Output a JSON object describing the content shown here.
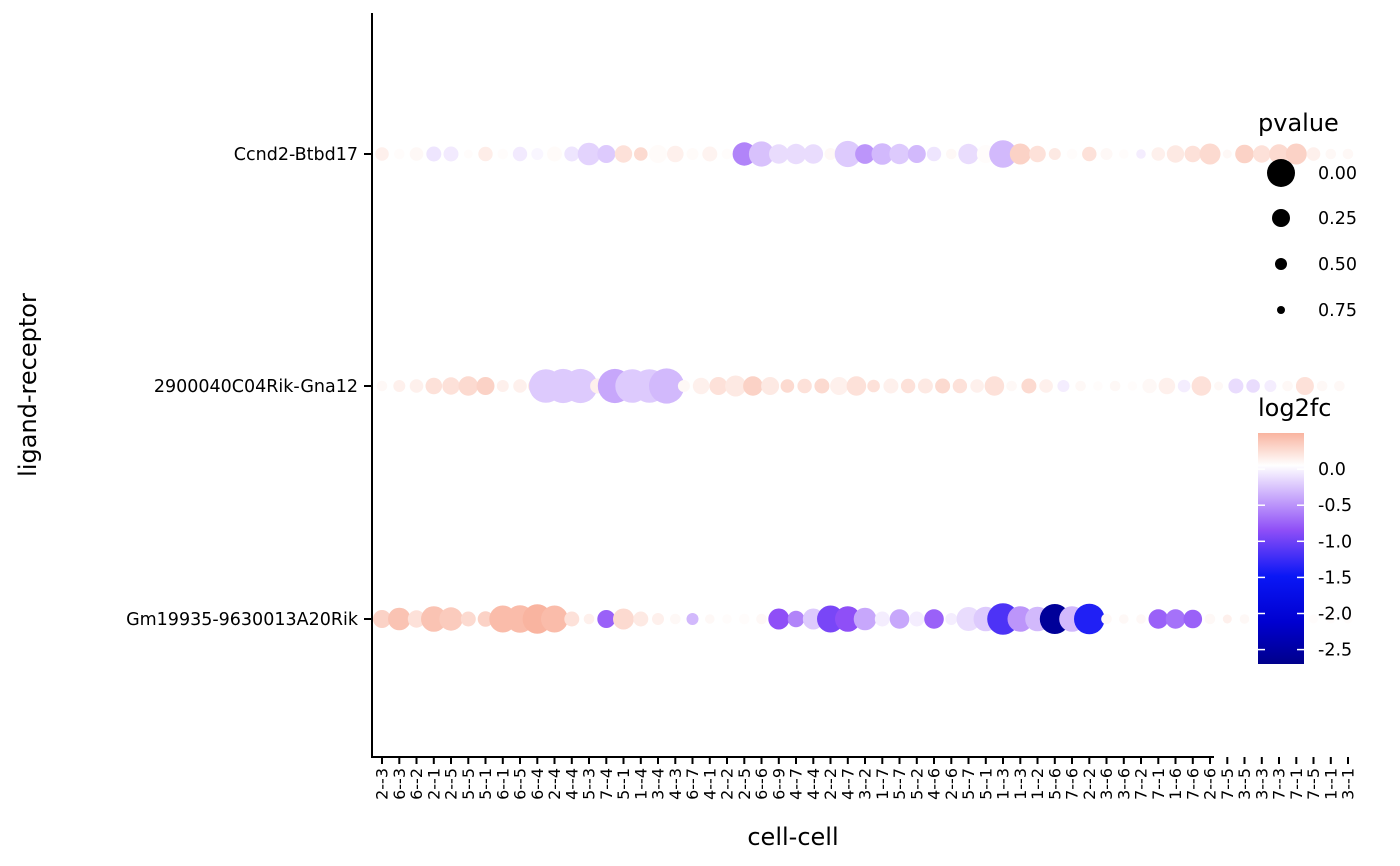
{
  "chart_data": {
    "type": "scatter",
    "xlabel": "cell-cell",
    "ylabel": "ligand-receptor",
    "x_categories": [
      "2--3",
      "6--3",
      "6--2",
      "2--1",
      "2--5",
      "5--5",
      "5--1",
      "6--1",
      "6--5",
      "6--4",
      "2--4",
      "4--4",
      "5--3",
      "7--4",
      "5--1",
      "1--4",
      "3--4",
      "4--3",
      "6--7",
      "4--1",
      "2--2",
      "2--5",
      "6--6",
      "6--9",
      "4--7",
      "4--4",
      "2--2",
      "4--7",
      "3--2",
      "1--7",
      "5--7",
      "5--2",
      "4--6",
      "2--6",
      "5--7",
      "5--1",
      "1--3",
      "1--3",
      "1--2",
      "5--6",
      "7--6",
      "2--2",
      "3--6",
      "3--6",
      "7--2",
      "7--1",
      "1--6",
      "7--6",
      "2--6",
      "7--5",
      "3--5",
      "3--3",
      "7--3",
      "7--1",
      "7--5",
      "1--1",
      "3--1"
    ],
    "y_categories": [
      "Gm19935-9630013A20Rik",
      "2900040C04Rik-Gna12",
      "Ccnd2-Btbd17"
    ],
    "size_legend": {
      "title": "pvalue",
      "values": [
        "0.00",
        "0.25",
        "0.50",
        "0.75"
      ]
    },
    "color_legend": {
      "title": "log2fc",
      "ticks": [
        "0.0",
        "-0.5",
        "-1.0",
        "-1.5",
        "-2.0",
        "-2.5"
      ],
      "high_color": "#f9b4a0",
      "mid_color": "#ffffff",
      "low_color": "#00008b"
    },
    "series": [
      {
        "row": "Ccnd2-Btbd17",
        "log2fc": [
          0.1,
          0.02,
          0.05,
          -0.15,
          -0.12,
          0.02,
          0.12,
          0.02,
          -0.12,
          -0.05,
          0.03,
          -0.15,
          -0.25,
          -0.3,
          0.2,
          0.25,
          0.03,
          0.1,
          0.03,
          0.08,
          0.02,
          -0.7,
          -0.35,
          -0.2,
          -0.2,
          -0.2,
          0.05,
          -0.3,
          -0.6,
          -0.4,
          -0.3,
          -0.4,
          -0.15,
          0.05,
          -0.2,
          0.02,
          -0.4,
          0.3,
          0.2,
          0.15,
          0.02,
          0.2,
          0.05,
          0.02,
          -0.1,
          0.1,
          0.15,
          0.2,
          0.25,
          0.05,
          0.3,
          0.2,
          0.25,
          0.3,
          0.1,
          0.05,
          0.05
        ],
        "pvalue": [
          0.75,
          0.85,
          0.75,
          0.7,
          0.7,
          0.9,
          0.72,
          0.85,
          0.72,
          0.8,
          0.7,
          0.7,
          0.45,
          0.6,
          0.62,
          0.75,
          0.6,
          0.65,
          0.8,
          0.7,
          0.85,
          0.42,
          0.36,
          0.55,
          0.52,
          0.55,
          0.8,
          0.33,
          0.54,
          0.48,
          0.52,
          0.6,
          0.72,
          0.85,
          0.52,
          0.6,
          0.28,
          0.5,
          0.65,
          0.8,
          0.85,
          0.72,
          0.8,
          0.88,
          0.88,
          0.75,
          0.62,
          0.65,
          0.5,
          0.9,
          0.58,
          0.62,
          0.55,
          0.5,
          0.75,
          0.85,
          0.85
        ]
      },
      {
        "row": "2900040C04Rik-Gna12",
        "log2fc": [
          0.05,
          0.1,
          0.1,
          0.2,
          0.2,
          0.25,
          0.3,
          0.1,
          0.1,
          0.2,
          -0.3,
          -0.3,
          -0.3,
          0.1,
          -0.5,
          -0.3,
          -0.3,
          -0.4,
          0.05,
          0.1,
          0.2,
          0.15,
          0.3,
          0.15,
          0.25,
          0.2,
          0.25,
          0.1,
          0.2,
          0.2,
          0.1,
          0.2,
          0.15,
          0.25,
          0.2,
          0.1,
          0.2,
          0.05,
          0.25,
          0.1,
          -0.1,
          0.05,
          0.02,
          0.05,
          0.02,
          0.05,
          0.1,
          -0.1,
          0.2,
          0.05,
          -0.2,
          -0.2,
          -0.1,
          0.05,
          0.2,
          0.05,
          0.05
        ],
        "pvalue": [
          0.85,
          0.8,
          0.75,
          0.65,
          0.62,
          0.55,
          0.6,
          0.8,
          0.75,
          0.6,
          0.08,
          0.06,
          0.06,
          0.7,
          0.06,
          0.08,
          0.08,
          0.03,
          0.8,
          0.65,
          0.6,
          0.5,
          0.55,
          0.6,
          0.75,
          0.72,
          0.7,
          0.6,
          0.55,
          0.78,
          0.7,
          0.72,
          0.7,
          0.7,
          0.72,
          0.75,
          0.55,
          0.85,
          0.7,
          0.75,
          0.8,
          0.85,
          0.88,
          0.85,
          0.88,
          0.72,
          0.65,
          0.78,
          0.55,
          0.9,
          0.7,
          0.75,
          0.8,
          0.85,
          0.6,
          0.85,
          0.85
        ],
        "x_index": [
          0,
          1,
          2,
          3,
          4,
          5,
          6,
          7,
          8,
          9,
          9,
          10,
          11,
          12,
          13,
          14,
          15,
          16,
          17,
          18,
          19,
          20,
          21,
          22,
          23,
          24,
          25,
          26,
          27,
          28,
          29,
          30,
          31,
          32,
          33,
          34,
          35,
          36,
          37,
          38,
          39,
          40,
          41,
          42,
          43,
          44,
          45,
          46,
          47,
          48,
          49,
          50,
          51,
          52,
          53,
          54,
          55
        ]
      },
      {
        "row": "Gm19935-9630013A20Rik",
        "log2fc": [
          0.3,
          0.4,
          0.2,
          0.4,
          0.35,
          0.25,
          0.3,
          0.45,
          0.45,
          0.5,
          0.45,
          0.2,
          0.1,
          -0.9,
          0.25,
          0.15,
          0.1,
          0.05,
          -0.4,
          0.05,
          0.02,
          0.02,
          0.05,
          -1.0,
          -0.7,
          -0.3,
          -1.1,
          -1.0,
          -0.5,
          -0.1,
          -0.5,
          -0.1,
          -0.9,
          -0.1,
          -0.2,
          -0.3,
          -1.3,
          -0.6,
          -0.4,
          -2.6,
          -0.4,
          -1.5,
          0.05,
          0.05,
          0.05,
          -0.9,
          -0.8,
          -0.9,
          0.05,
          0.1,
          0.05,
          0.02,
          0.02,
          0.02,
          0.02,
          0.02,
          0.02
        ],
        "pvalue": [
          0.6,
          0.45,
          0.62,
          0.35,
          0.42,
          0.7,
          0.68,
          0.3,
          0.28,
          0.22,
          0.3,
          0.7,
          0.85,
          0.6,
          0.5,
          0.7,
          0.8,
          0.85,
          0.8,
          0.88,
          0.88,
          0.85,
          0.85,
          0.5,
          0.65,
          0.5,
          0.3,
          0.35,
          0.45,
          0.7,
          0.55,
          0.7,
          0.55,
          0.8,
          0.4,
          0.38,
          0.15,
          0.35,
          0.38,
          0.2,
          0.35,
          0.18,
          0.85,
          0.88,
          0.88,
          0.55,
          0.55,
          0.58,
          0.85,
          0.9,
          0.88,
          0.9,
          0.9,
          0.9,
          0.9,
          0.9,
          0.9
        ]
      }
    ],
    "grid": false,
    "legend_placement": "right"
  }
}
